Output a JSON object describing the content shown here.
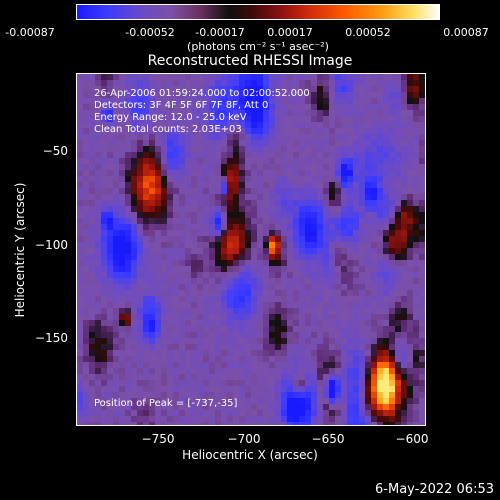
{
  "colorbar": {
    "ticks": [
      "-0.00087",
      "-0.00052",
      "-0.00017",
      "0.00017",
      "0.00052",
      "0.00087"
    ],
    "units": "(photons cm⁻² s⁻¹ asec⁻²)"
  },
  "title": "Reconstructed RHESSI Image",
  "info": {
    "time": "26-Apr-2006 01:59:24.000 to 02:00:52.000",
    "detectors": "Detectors: 3F 4F 5F 6F 7F 8F, Att 0",
    "energy": "Energy Range: 12.0 - 25.0 keV",
    "clean": "Clean    Total counts: 2.03E+03",
    "peak": "Position of Peak = [-737,-35]"
  },
  "axes": {
    "xlabel": "Heliocentric X (arcsec)",
    "ylabel": "Heliocentric Y (arcsec)",
    "xticks": [
      "−750",
      "−700",
      "−650",
      "−600"
    ],
    "yticks": [
      "−50",
      "−100",
      "−150"
    ]
  },
  "footer": "6-May-2022 06:53",
  "colors": {
    "background": "#000000",
    "foreground": "#ffffff"
  }
}
